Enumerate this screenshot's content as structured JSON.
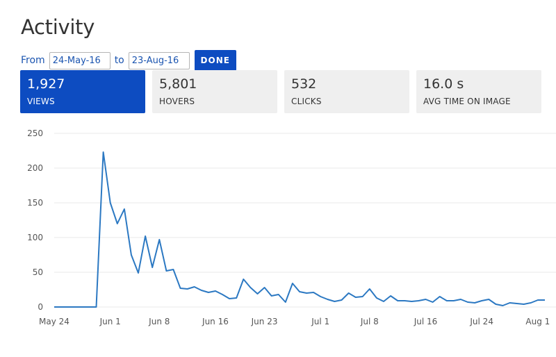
{
  "page": {
    "title": "Activity"
  },
  "date_range": {
    "from_label": "From",
    "from_value": "24-May-16",
    "to_label": "to",
    "to_value": "23-Aug-16",
    "done_label": "DONE"
  },
  "metrics": [
    {
      "value": "1,927",
      "label": "VIEWS",
      "active": true
    },
    {
      "value": "5,801",
      "label": "HOVERS",
      "active": false
    },
    {
      "value": "532",
      "label": "CLICKS",
      "active": false
    },
    {
      "value": "16.0 s",
      "label": "AVG TIME ON IMAGE",
      "active": false
    }
  ],
  "colors": {
    "accent": "#0d4cc1",
    "line": "#2b78c2",
    "grid": "#e9e9e9",
    "tab_bg": "#efefef"
  },
  "chart_data": {
    "type": "line",
    "title": "",
    "xlabel": "",
    "ylabel": "",
    "ylim": [
      0,
      250
    ],
    "yticks": [
      0,
      50,
      100,
      150,
      200,
      250
    ],
    "grid": true,
    "xtick_labels": [
      "May 24",
      "Jun 1",
      "Jun 8",
      "Jun 16",
      "Jun 23",
      "Jul 1",
      "Jul 8",
      "Jul 16",
      "Jul 24",
      "Aug 1"
    ],
    "x": [
      "May 24",
      "May 25",
      "May 26",
      "May 27",
      "May 28",
      "May 29",
      "May 30",
      "May 31",
      "Jun 1",
      "Jun 2",
      "Jun 3",
      "Jun 4",
      "Jun 5",
      "Jun 6",
      "Jun 7",
      "Jun 8",
      "Jun 9",
      "Jun 10",
      "Jun 11",
      "Jun 12",
      "Jun 13",
      "Jun 14",
      "Jun 15",
      "Jun 16",
      "Jun 17",
      "Jun 18",
      "Jun 19",
      "Jun 20",
      "Jun 21",
      "Jun 22",
      "Jun 23",
      "Jun 24",
      "Jun 25",
      "Jun 26",
      "Jun 27",
      "Jun 28",
      "Jun 29",
      "Jun 30",
      "Jul 1",
      "Jul 2",
      "Jul 3",
      "Jul 4",
      "Jul 5",
      "Jul 6",
      "Jul 7",
      "Jul 8",
      "Jul 9",
      "Jul 10",
      "Jul 11",
      "Jul 12",
      "Jul 13",
      "Jul 14",
      "Jul 15",
      "Jul 16",
      "Jul 17",
      "Jul 18",
      "Jul 19",
      "Jul 20",
      "Jul 21",
      "Jul 22",
      "Jul 23",
      "Jul 24",
      "Jul 25",
      "Jul 26",
      "Jul 27",
      "Jul 28",
      "Jul 29",
      "Jul 30",
      "Jul 31",
      "Aug 1",
      "Aug 2"
    ],
    "series": [
      {
        "values": [
          0,
          0,
          0,
          0,
          0,
          0,
          0,
          223,
          150,
          120,
          141,
          75,
          49,
          102,
          57,
          97,
          52,
          54,
          27,
          26,
          29,
          24,
          21,
          23,
          18,
          12,
          13,
          40,
          28,
          19,
          28,
          16,
          18,
          7,
          34,
          22,
          20,
          21,
          15,
          11,
          8,
          10,
          20,
          14,
          15,
          26,
          13,
          8,
          16,
          9,
          9,
          8,
          9,
          11,
          7,
          15,
          9,
          9,
          11,
          7,
          6,
          9,
          11,
          4,
          2,
          6,
          5,
          4,
          6,
          10,
          10
        ]
      }
    ]
  }
}
